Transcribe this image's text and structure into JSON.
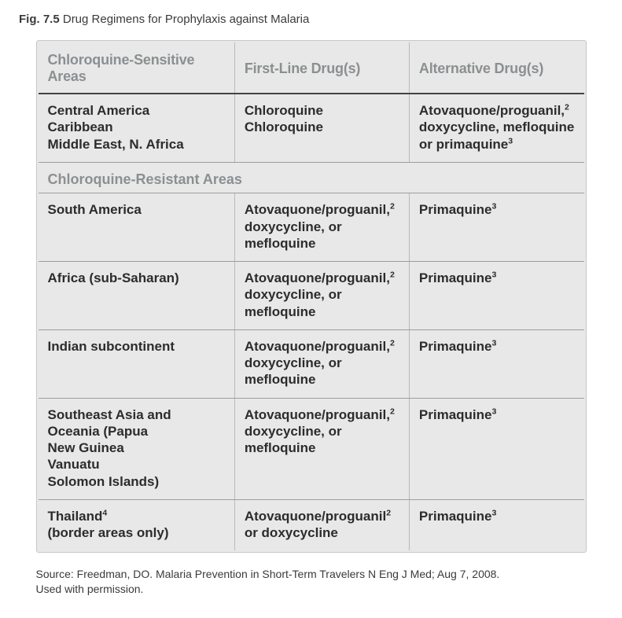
{
  "caption": {
    "label": "Fig. 7.5",
    "title": "Drug Regimens for Prophylaxis against Malaria"
  },
  "table": {
    "background_color": "#e8e8e8",
    "border_color": "#c6c7c8",
    "headers": {
      "col1": "Chloroquine-Sensitive Areas",
      "col2": "First-Line Drug(s)",
      "col3": "Alternative Drug(s)"
    },
    "sensitive": {
      "regions": "Central America\nCaribbean\nMiddle East, N. Africa",
      "firstline": "Chloroquine\nChloroquine",
      "alt_parts": {
        "pre": "Atovaquone/proguanil,",
        "sup1": "2",
        "mid": "\ndoxycycline, mefloquine\nor primaquine",
        "sup2": "3"
      }
    },
    "section2_label": "Chloroquine-Resistant Areas",
    "resistant": [
      {
        "region": "South America",
        "firstline_parts": {
          "pre": "Atovaquone/proguanil,",
          "sup": "2",
          "post": "\ndoxycycline, or\nmefloquine"
        },
        "alt_parts": {
          "pre": "Primaquine",
          "sup": "3"
        }
      },
      {
        "region": "Africa (sub-Saharan)",
        "firstline_parts": {
          "pre": "Atovaquone/proguanil,",
          "sup": "2",
          "post": "\ndoxycycline, or\nmefloquine"
        },
        "alt_parts": {
          "pre": "Primaquine",
          "sup": "3"
        }
      },
      {
        "region": "Indian subcontinent",
        "firstline_parts": {
          "pre": "Atovaquone/proguanil,",
          "sup": "2",
          "post": "\ndoxycycline, or\nmefloquine"
        },
        "alt_parts": {
          "pre": "Primaquine",
          "sup": "3"
        }
      },
      {
        "region": "Southeast Asia and\nOceania (Papua\nNew Guinea\nVanuatu\nSolomon Islands)",
        "firstline_parts": {
          "pre": "Atovaquone/proguanil,",
          "sup": "2",
          "post": "\ndoxycycline, or\nmefloquine"
        },
        "alt_parts": {
          "pre": "Primaquine",
          "sup": "3"
        }
      },
      {
        "region_parts": {
          "pre": "Thailand",
          "sup": "4",
          "post": "\n(border areas only)"
        },
        "firstline_parts": {
          "pre": "Atovaquone/proguanil",
          "sup": "2",
          "post": "\nor doxycycline"
        },
        "alt_parts": {
          "pre": "Primaquine",
          "sup": "3"
        }
      }
    ]
  },
  "source": {
    "line1": "Source: Freedman, DO. Malaria Prevention in Short-Term Travelers N Eng J Med; Aug 7, 2008.",
    "line2": "Used with permission."
  }
}
